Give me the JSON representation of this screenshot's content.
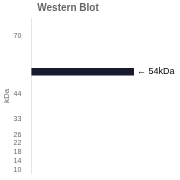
{
  "chart_data": {
    "type": "bar",
    "title": "Western Blot",
    "ylabel": "kDa",
    "categories": [
      null
    ],
    "values": [
      [
        52.5,
        55.5
      ]
    ],
    "color": "#1a1a2e",
    "ylim": [
      8.5,
      78
    ],
    "yticks": [
      70,
      44,
      33,
      26,
      22,
      18,
      14,
      10
    ],
    "grid": false,
    "tick_labels": "y",
    "annotations": [
      {
        "text": "← 54kDa",
        "y": 54
      }
    ]
  }
}
